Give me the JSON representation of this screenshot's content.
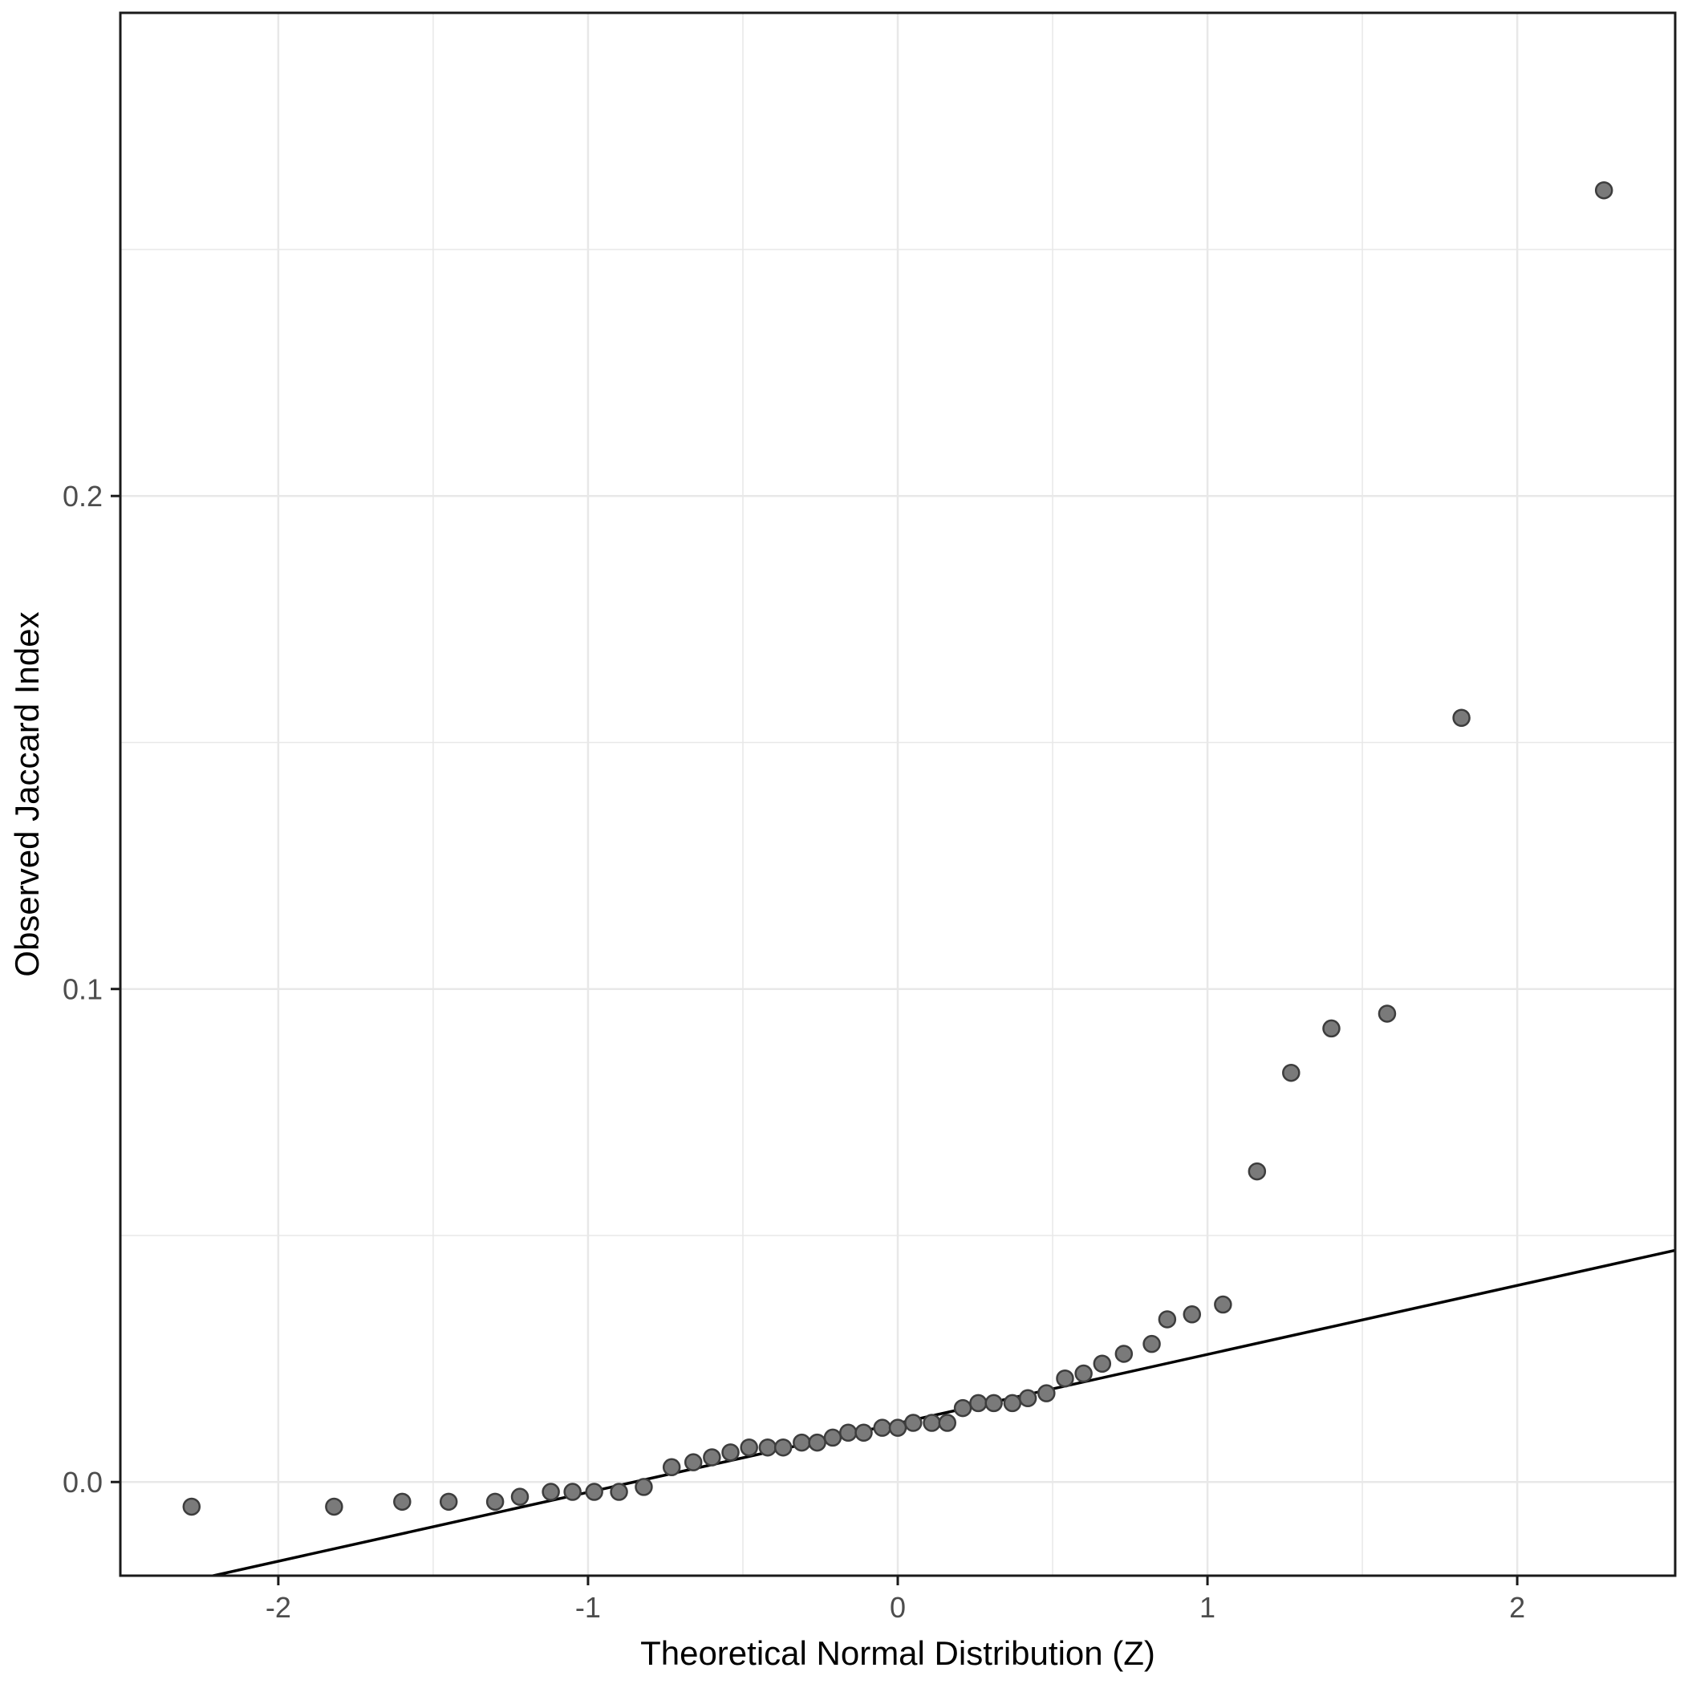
{
  "chart_data": {
    "type": "scatter",
    "title": "",
    "xlabel": "Theoretical Normal Distribution (Z)",
    "ylabel": "Observed Jaccard Index",
    "xlim": [
      -2.51,
      2.51
    ],
    "ylim": [
      -0.019,
      0.298
    ],
    "x_major_ticks": [
      -2,
      -1,
      0,
      1,
      2
    ],
    "x_tick_labels": [
      "-2",
      "-1",
      "0",
      "1",
      "2"
    ],
    "x_minor_ticks": [
      -1.5,
      -0.5,
      0.5,
      1.5
    ],
    "y_major_ticks": [
      0.0,
      0.1,
      0.2
    ],
    "y_tick_labels": [
      "0.0",
      "0.1",
      "0.2"
    ],
    "y_minor_ticks": [
      0.05,
      0.15,
      0.25
    ],
    "grid": true,
    "legend": "none",
    "qq_line": {
      "x1": -2.51,
      "y1": -0.0232,
      "x2": 2.51,
      "y2": 0.047
    },
    "points": [
      [
        -2.28,
        -0.005
      ],
      [
        -1.82,
        -0.005
      ],
      [
        -1.6,
        -0.004
      ],
      [
        -1.45,
        -0.004
      ],
      [
        -1.3,
        -0.004
      ],
      [
        -1.22,
        -0.003
      ],
      [
        -1.12,
        -0.002
      ],
      [
        -1.05,
        -0.002
      ],
      [
        -0.98,
        -0.002
      ],
      [
        -0.9,
        -0.002
      ],
      [
        -0.82,
        -0.001
      ],
      [
        -0.73,
        0.003
      ],
      [
        -0.66,
        0.004
      ],
      [
        -0.6,
        0.005
      ],
      [
        -0.54,
        0.006
      ],
      [
        -0.48,
        0.007
      ],
      [
        -0.42,
        0.007
      ],
      [
        -0.37,
        0.007
      ],
      [
        -0.31,
        0.008
      ],
      [
        -0.26,
        0.008
      ],
      [
        -0.21,
        0.009
      ],
      [
        -0.16,
        0.01
      ],
      [
        -0.11,
        0.01
      ],
      [
        -0.05,
        0.011
      ],
      [
        0.0,
        0.011
      ],
      [
        0.05,
        0.012
      ],
      [
        0.11,
        0.012
      ],
      [
        0.16,
        0.012
      ],
      [
        0.21,
        0.015
      ],
      [
        0.26,
        0.016
      ],
      [
        0.31,
        0.016
      ],
      [
        0.37,
        0.016
      ],
      [
        0.42,
        0.017
      ],
      [
        0.48,
        0.018
      ],
      [
        0.54,
        0.021
      ],
      [
        0.6,
        0.022
      ],
      [
        0.66,
        0.024
      ],
      [
        0.73,
        0.026
      ],
      [
        0.82,
        0.028
      ],
      [
        0.87,
        0.033
      ],
      [
        0.95,
        0.034
      ],
      [
        1.05,
        0.036
      ],
      [
        1.16,
        0.063
      ],
      [
        1.27,
        0.083
      ],
      [
        1.4,
        0.092
      ],
      [
        1.58,
        0.095
      ],
      [
        1.82,
        0.155
      ],
      [
        2.28,
        0.262
      ]
    ],
    "colors": {
      "point_fill": "#7a7a7a",
      "point_stroke": "#3d3d3d",
      "line": "#000000",
      "grid": "#e8e8e8",
      "panel_border": "#1a1a1a",
      "tick_mark": "#1a1a1a",
      "tick_label": "#4d4d4d",
      "axis_title": "#000000",
      "background": "#ffffff"
    }
  }
}
